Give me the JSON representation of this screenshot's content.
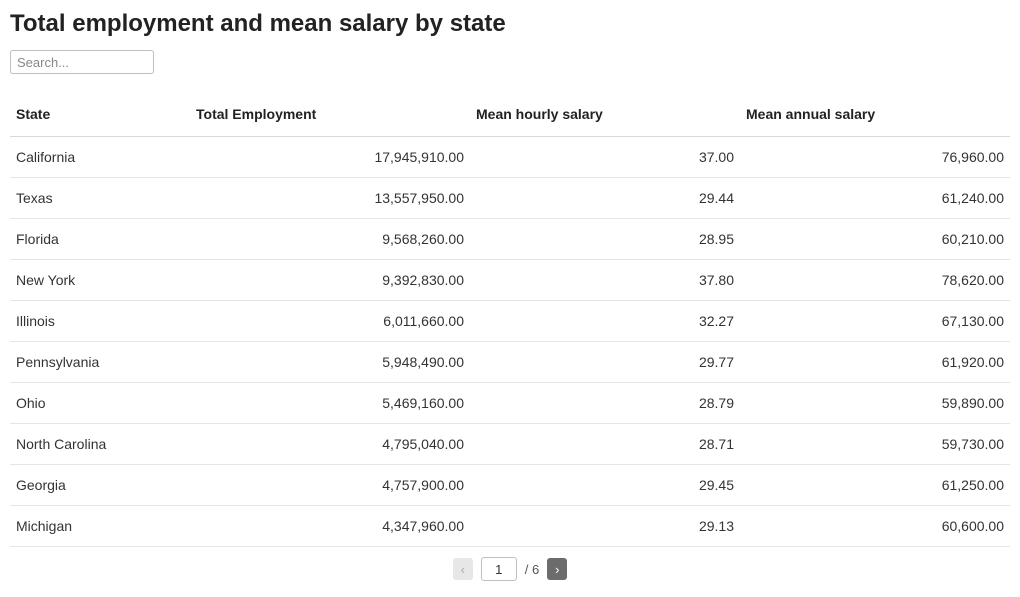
{
  "page": {
    "title": "Total employment and mean salary by state"
  },
  "search": {
    "placeholder": "Search...",
    "value": ""
  },
  "table": {
    "columns": [
      {
        "key": "state",
        "label": "State",
        "align": "left"
      },
      {
        "key": "emp",
        "label": "Total Employment",
        "align": "right"
      },
      {
        "key": "hourly",
        "label": "Mean hourly salary",
        "align": "right"
      },
      {
        "key": "annual",
        "label": "Mean annual salary",
        "align": "right"
      }
    ],
    "rows": [
      {
        "state": "California",
        "emp": "17,945,910.00",
        "hourly": "37.00",
        "annual": "76,960.00"
      },
      {
        "state": "Texas",
        "emp": "13,557,950.00",
        "hourly": "29.44",
        "annual": "61,240.00"
      },
      {
        "state": "Florida",
        "emp": "9,568,260.00",
        "hourly": "28.95",
        "annual": "60,210.00"
      },
      {
        "state": "New York",
        "emp": "9,392,830.00",
        "hourly": "37.80",
        "annual": "78,620.00"
      },
      {
        "state": "Illinois",
        "emp": "6,011,660.00",
        "hourly": "32.27",
        "annual": "67,130.00"
      },
      {
        "state": "Pennsylvania",
        "emp": "5,948,490.00",
        "hourly": "29.77",
        "annual": "61,920.00"
      },
      {
        "state": "Ohio",
        "emp": "5,469,160.00",
        "hourly": "28.79",
        "annual": "59,890.00"
      },
      {
        "state": "North Carolina",
        "emp": "4,795,040.00",
        "hourly": "28.71",
        "annual": "59,730.00"
      },
      {
        "state": "Georgia",
        "emp": "4,757,900.00",
        "hourly": "29.45",
        "annual": "61,250.00"
      },
      {
        "state": "Michigan",
        "emp": "4,347,960.00",
        "hourly": "29.13",
        "annual": "60,600.00"
      }
    ]
  },
  "pagination": {
    "prev_glyph": "‹",
    "next_glyph": "›",
    "current": "1",
    "total_label": "/ 6",
    "total_pages": 6,
    "prev_enabled": false,
    "next_enabled": true
  },
  "style": {
    "background_color": "#ffffff",
    "text_color": "#333333",
    "border_color": "#e5e5e5",
    "header_border_color": "#d9d9d9",
    "title_fontsize": 24,
    "body_fontsize": 14,
    "prev_button_bg": "#e7e7e7",
    "prev_button_fg": "#aaaaaa",
    "next_button_bg": "#6c6c6c",
    "next_button_fg": "#ffffff"
  }
}
